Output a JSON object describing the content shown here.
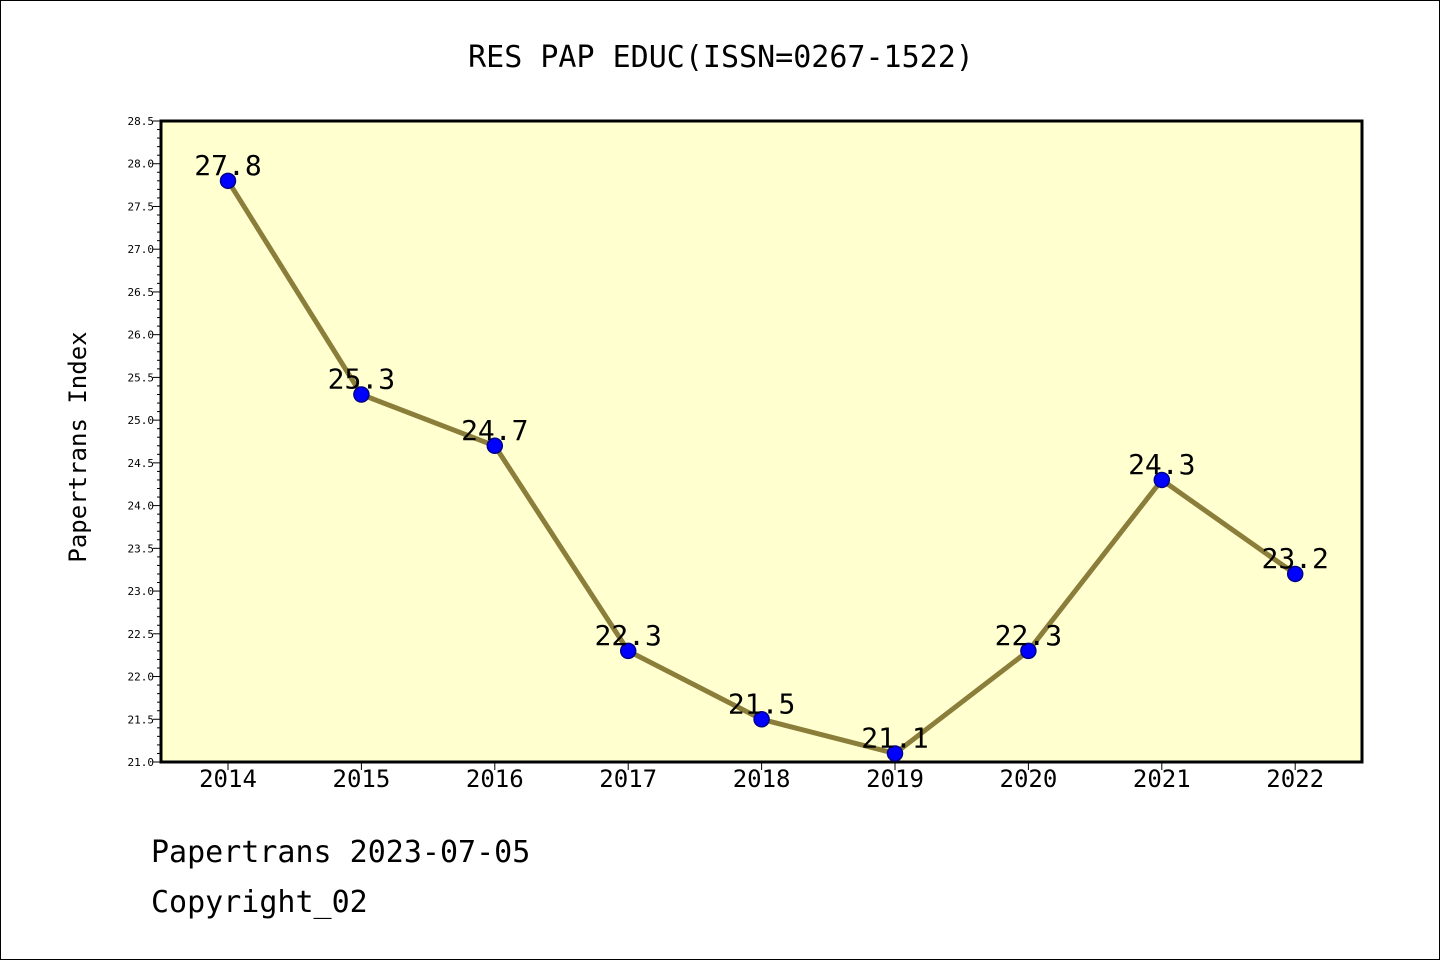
{
  "chart_data": {
    "type": "line",
    "title": "RES PAP EDUC(ISSN=0267-1522)",
    "xlabel": "",
    "ylabel": "Papertrans Index",
    "categories": [
      "2014",
      "2015",
      "2016",
      "2017",
      "2018",
      "2019",
      "2020",
      "2021",
      "2022"
    ],
    "series": [
      {
        "values": [
          27.8,
          25.3,
          24.7,
          22.3,
          21.5,
          21.1,
          22.3,
          24.3,
          23.2
        ],
        "labels": [
          "27.8",
          "25.3",
          "24.7",
          "22.3",
          "21.5",
          "21.1",
          "22.3",
          "24.3",
          "23.2"
        ]
      }
    ],
    "ylim": [
      21.0,
      28.5
    ],
    "yticks": [
      "21.0",
      "21.5",
      "22.0",
      "22.5",
      "23.0",
      "23.5",
      "24.0",
      "24.5",
      "25.0",
      "25.5",
      "26.0",
      "26.5",
      "27.0",
      "27.5",
      "28.0",
      "28.5"
    ],
    "grid": false,
    "colors": {
      "plot_background": "#ffffd0",
      "line": "#8b7d3a",
      "marker_fill": "#0000ff",
      "marker_edge": "#00008b"
    }
  },
  "footer": {
    "line1": "Papertrans 2023-07-05",
    "line2": "Copyright_02"
  }
}
